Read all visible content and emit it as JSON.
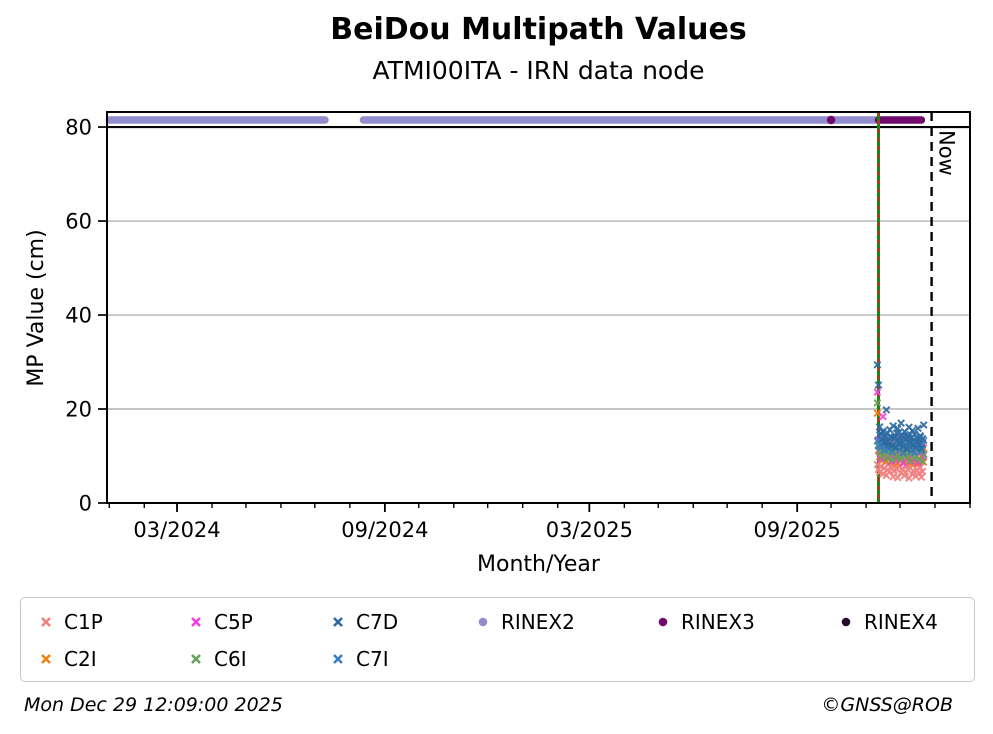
{
  "title": "BeiDou Multipath Values",
  "subtitle": "ATMI00ITA - IRN data node",
  "footer": {
    "timestamp": "Mon Dec 29 12:09:00 2025",
    "credit": "©GNSS@ROB"
  },
  "legend": {
    "items": [
      {
        "label": "C1P",
        "marker": "x",
        "color": "#f08080"
      },
      {
        "label": "C5P",
        "marker": "x",
        "color": "#f83ce2"
      },
      {
        "label": "C7D",
        "marker": "x",
        "color": "#2d6a9f"
      },
      {
        "label": "RINEX2",
        "marker": "o",
        "color": "#938dcb"
      },
      {
        "label": "RINEX3",
        "marker": "o",
        "color": "#700b6d"
      },
      {
        "label": "RINEX4",
        "marker": "o",
        "color": "#250a2d"
      },
      {
        "label": "C2I",
        "marker": "x",
        "color": "#ee820d"
      },
      {
        "label": "C6I",
        "marker": "x",
        "color": "#69a15a"
      },
      {
        "label": "C7I",
        "marker": "x",
        "color": "#3a7fbe"
      }
    ]
  },
  "chart_data": {
    "type": "scatter",
    "title": "BeiDou Multipath Values",
    "subtitle": "ATMI00ITA - IRN data node",
    "xlabel": "Month/Year",
    "ylabel": "MP Value (cm)",
    "x_range": [
      "2023-12-30",
      "2026-02-01"
    ],
    "y_range": [
      0,
      83.2
    ],
    "y_ticks": [
      0,
      20,
      40,
      60,
      80
    ],
    "grid": true,
    "threshold_line_y": 80,
    "x_major_ticks": [
      {
        "date": "2024-03-01",
        "label": "03/2024"
      },
      {
        "date": "2024-09-01",
        "label": "09/2024"
      },
      {
        "date": "2025-03-01",
        "label": "03/2025"
      },
      {
        "date": "2025-09-01",
        "label": "09/2025"
      }
    ],
    "now_line": {
      "date": "2025-12-29",
      "label": "Now"
    },
    "event_lines": [
      {
        "date": "2025-11-12",
        "color": "#0f8a0f",
        "style": "solid"
      },
      {
        "date": "2025-11-12",
        "color": "#e02020",
        "style": "dashed"
      }
    ],
    "availability_bands": [
      {
        "name": "RINEX2",
        "y": 81.5,
        "color": "#938dcb",
        "segments": [
          [
            "2024-01-01",
            "2024-07-10"
          ],
          [
            "2024-08-13",
            "2025-11-12"
          ]
        ]
      },
      {
        "name": "RINEX3",
        "y": 81.5,
        "color": "#700b6d",
        "segments": [
          [
            "2025-11-12",
            "2025-12-20"
          ]
        ],
        "points": [
          "2025-10-01"
        ]
      }
    ],
    "series": [
      {
        "name": "C1P",
        "color": "#f08080",
        "marker": "x",
        "start": "2025-11-11",
        "step_days": 1,
        "values": [
          8.2,
          7.1,
          6.5,
          7.8,
          9.1,
          6.2,
          7.4,
          8.6,
          5.9,
          7.0,
          8.3,
          6.7,
          7.6,
          9.0,
          5.6,
          6.9,
          8.0,
          7.2,
          5.4,
          7.7,
          8.8,
          6.4,
          7.3,
          8.5,
          5.8,
          6.6,
          7.9,
          7.1,
          5.3,
          7.5,
          8.4,
          6.1,
          6.8,
          9.2,
          5.7,
          7.0,
          8.1,
          6.3,
          7.6,
          5.5,
          6.7,
          8.7
        ]
      },
      {
        "name": "C2I",
        "color": "#ee820d",
        "marker": "x",
        "start": "2025-11-11",
        "step_days": 1,
        "values": [
          19.1,
          11.2,
          9.8,
          10.5,
          12.1,
          9.2,
          10.8,
          11.6,
          8.9,
          10.2,
          11.0,
          9.5,
          10.7,
          12.3,
          8.7,
          9.9,
          11.4,
          10.0,
          8.5,
          10.9,
          11.8,
          9.3,
          10.4,
          12.0,
          8.8,
          9.6,
          11.1,
          10.3,
          8.6,
          10.6,
          11.5,
          9.1,
          9.9,
          12.2,
          8.4,
          10.1,
          11.3,
          9.4,
          10.8,
          8.9,
          9.7,
          11.7
        ]
      },
      {
        "name": "C5P",
        "color": "#f83ce2",
        "marker": "x",
        "start": "2025-11-11",
        "step_days": 1,
        "values": [
          23.6,
          13.5,
          11.2,
          9.4,
          12.6,
          18.4,
          10.1,
          11.8,
          13.2,
          9.7,
          10.9,
          12.4,
          8.8,
          11.5,
          13.8,
          10.3,
          9.1,
          12.0,
          11.1,
          14.2,
          9.8,
          10.6,
          12.9,
          8.5,
          11.3,
          13.4,
          10.0,
          9.5,
          12.2,
          11.7,
          8.9,
          10.4,
          13.0,
          9.2,
          11.9,
          12.5,
          8.6,
          10.8,
          11.4,
          9.9,
          12.8,
          10.2
        ]
      },
      {
        "name": "C6I",
        "color": "#69a15a",
        "marker": "x",
        "start": "2025-11-11",
        "step_days": 1,
        "values": [
          21.3,
          12.4,
          10.9,
          11.7,
          9.8,
          12.8,
          10.4,
          11.2,
          13.1,
          9.5,
          10.8,
          12.0,
          11.4,
          9.2,
          10.6,
          12.6,
          11.0,
          9.7,
          11.9,
          10.2,
          12.3,
          9.4,
          10.7,
          11.6,
          13.0,
          9.9,
          10.3,
          12.1,
          11.1,
          9.0,
          10.5,
          11.8,
          12.7,
          9.6,
          10.0,
          11.3,
          12.5,
          9.3,
          10.9,
          11.5,
          8.9,
          10.4
        ]
      },
      {
        "name": "C7I",
        "color": "#3a7fbe",
        "marker": "x",
        "start": "2025-11-11",
        "step_days": 1,
        "values": [
          13.2,
          12.1,
          14.5,
          11.8,
          12.9,
          15.3,
          11.2,
          13.6,
          12.4,
          14.8,
          11.5,
          12.7,
          13.9,
          10.9,
          12.2,
          14.1,
          11.7,
          13.4,
          12.0,
          15.0,
          11.3,
          12.8,
          13.7,
          10.7,
          12.5,
          14.3,
          11.9,
          13.0,
          12.3,
          14.6,
          11.0,
          12.6,
          13.5,
          10.8,
          12.1,
          13.8,
          11.4,
          12.9,
          14.0,
          11.1,
          12.4,
          13.3
        ]
      },
      {
        "name": "C7D",
        "color": "#2d6a9f",
        "marker": "x",
        "start": "2025-11-11",
        "step_days": 1,
        "values": [
          29.4,
          25.1,
          16.2,
          14.8,
          13.5,
          15.1,
          12.9,
          14.2,
          19.8,
          13.0,
          12.4,
          15.6,
          14.1,
          12.2,
          16.4,
          13.8,
          11.9,
          14.9,
          15.8,
          12.6,
          13.3,
          17.0,
          14.4,
          12.0,
          15.2,
          13.6,
          11.5,
          14.0,
          16.1,
          12.8,
          13.9,
          15.4,
          12.3,
          14.6,
          11.8,
          13.1,
          15.9,
          12.5,
          14.3,
          11.6,
          13.7,
          16.6
        ]
      }
    ]
  }
}
